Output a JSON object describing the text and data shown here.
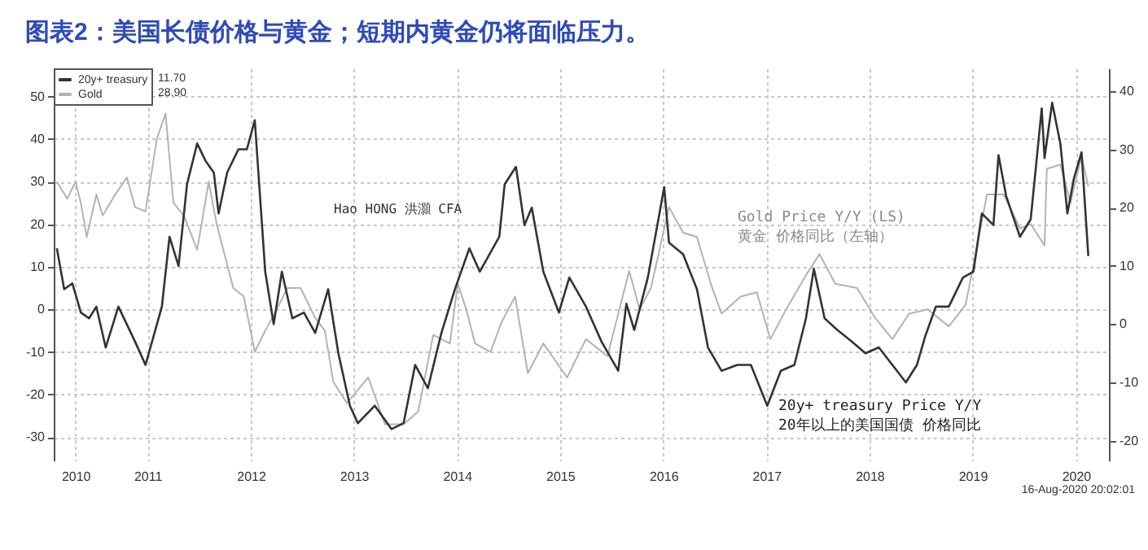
{
  "chart_data": {
    "type": "line",
    "title": "图表2：美国长债价格与黄金；短期内黄金仍将面临压力。",
    "xlim": [
      "2010-08-03",
      "2020-10-26"
    ],
    "xticks": [
      {
        "value": "2010-10-19",
        "label": "2010"
      },
      {
        "value": "2011-07-01",
        "label": "2011"
      },
      {
        "value": "2012-07-01",
        "label": "2012"
      },
      {
        "value": "2013-07-01",
        "label": "2013"
      },
      {
        "value": "2014-07-01",
        "label": "2014"
      },
      {
        "value": "2015-07-01",
        "label": "2015"
      },
      {
        "value": "2016-07-01",
        "label": "2016"
      },
      {
        "value": "2017-07-01",
        "label": "2017"
      },
      {
        "value": "2018-07-01",
        "label": "2018"
      },
      {
        "value": "2019-07-01",
        "label": "2019"
      },
      {
        "value": "2020-07-01",
        "label": "2020"
      }
    ],
    "ylim": [
      -35.5,
      56.6
    ],
    "yticks": [
      -30,
      -20,
      -10,
      0,
      10,
      20,
      30,
      40,
      50
    ],
    "y2lim": [
      -23.4,
      43.9
    ],
    "y2ticks": [
      -20,
      -10,
      0,
      10,
      20,
      30,
      40
    ],
    "grid": true,
    "legend": "top left",
    "series": [
      {
        "name": "20y+ treasury",
        "color": "#333333",
        "axis": "y2",
        "x": [
          "2010-08-14",
          "2010-09-09",
          "2010-10-08",
          "2010-11-07",
          "2010-12-06",
          "2011-01-01",
          "2011-02-03",
          "2011-03-20",
          "2011-05-18",
          "2011-06-24",
          "2011-08-21",
          "2011-09-17",
          "2011-10-19",
          "2011-11-18",
          "2011-12-24",
          "2012-01-23",
          "2012-02-21",
          "2012-03-09",
          "2012-04-08",
          "2012-05-18",
          "2012-06-17",
          "2012-07-15",
          "2012-08-21",
          "2012-09-20",
          "2012-10-19",
          "2012-11-25",
          "2013-01-05",
          "2013-02-14",
          "2013-04-01",
          "2013-05-07",
          "2013-06-17",
          "2013-07-15",
          "2013-09-13",
          "2013-11-11",
          "2013-12-24",
          "2014-02-03",
          "2014-03-20",
          "2014-05-07",
          "2014-06-24",
          "2014-08-14",
          "2014-09-20",
          "2014-11-28",
          "2014-12-17",
          "2015-01-26",
          "2015-02-25",
          "2015-03-23",
          "2015-05-03",
          "2015-06-27",
          "2015-08-03",
          "2015-10-01",
          "2015-11-25",
          "2016-01-23",
          "2016-02-21",
          "2016-03-20",
          "2016-05-07",
          "2016-06-06",
          "2016-07-04",
          "2016-07-21",
          "2016-09-09",
          "2016-10-28",
          "2016-12-06",
          "2017-01-23",
          "2017-03-20",
          "2017-05-07",
          "2017-07-04",
          "2017-08-21",
          "2017-10-08",
          "2017-11-18",
          "2017-12-16",
          "2018-01-23",
          "2018-03-09",
          "2018-04-30",
          "2018-06-17",
          "2018-08-03",
          "2018-09-20",
          "2018-11-07",
          "2018-12-16",
          "2019-01-15",
          "2019-02-21",
          "2019-04-08",
          "2019-05-28",
          "2019-07-04",
          "2019-08-03",
          "2019-09-13",
          "2019-10-01",
          "2019-10-28",
          "2019-12-16",
          "2020-01-23",
          "2020-03-02",
          "2020-03-12",
          "2020-04-08",
          "2020-05-07",
          "2020-06-01",
          "2020-06-24",
          "2020-07-21",
          "2020-08-14"
        ],
        "values": [
          13,
          6,
          7,
          2,
          1,
          3,
          -4,
          3,
          -3,
          -7,
          3,
          15,
          10,
          24,
          31,
          28,
          26,
          19,
          26,
          30,
          30,
          35,
          9,
          0,
          9,
          1,
          2,
          -1.5,
          6,
          -5,
          -14,
          -17,
          -14,
          -18,
          -17,
          -7,
          -11,
          -1.5,
          6,
          13,
          9,
          15,
          24,
          27,
          17,
          20,
          9,
          2,
          8,
          3,
          -3,
          -8,
          3.5,
          -1,
          8,
          16,
          23.5,
          14,
          12,
          6,
          -4,
          -8,
          -7,
          -7,
          -14,
          -8,
          -7,
          1,
          9.5,
          1,
          -1,
          -3,
          -5,
          -4,
          -7,
          -10,
          -7,
          -2,
          3,
          3,
          8,
          9,
          19,
          17,
          29,
          22,
          15,
          18,
          37,
          28.5,
          38,
          31,
          19,
          25,
          29.5,
          11.7
        ]
      },
      {
        "name": "Gold",
        "color": "#b3b3b3",
        "x": [
          "2010-08-14",
          "2010-09-20",
          "2010-10-19",
          "2010-11-07",
          "2010-11-28",
          "2011-01-01",
          "2011-01-23",
          "2011-03-09",
          "2011-04-19",
          "2011-05-18",
          "2011-06-24",
          "2011-08-03",
          "2011-09-03",
          "2011-10-01",
          "2011-11-07",
          "2011-12-24",
          "2012-02-03",
          "2012-03-02",
          "2012-04-30",
          "2012-06-06",
          "2012-07-15",
          "2012-08-21",
          "2012-10-01",
          "2012-11-07",
          "2012-12-24",
          "2013-02-14",
          "2013-03-20",
          "2013-04-19",
          "2013-06-06",
          "2013-08-21",
          "2013-10-19",
          "2013-12-24",
          "2014-02-14",
          "2014-04-08",
          "2014-06-06",
          "2014-07-04",
          "2014-08-03",
          "2014-09-03",
          "2014-10-28",
          "2014-12-06",
          "2015-01-23",
          "2015-03-09",
          "2015-05-03",
          "2015-07-26",
          "2015-10-01",
          "2015-12-16",
          "2016-03-02",
          "2016-04-08",
          "2016-05-18",
          "2016-07-21",
          "2016-09-09",
          "2016-10-28",
          "2016-12-16",
          "2017-01-23",
          "2017-04-01",
          "2017-05-28",
          "2017-07-15",
          "2017-09-09",
          "2017-11-18",
          "2018-01-05",
          "2018-03-02",
          "2018-05-18",
          "2018-07-21",
          "2018-09-20",
          "2018-11-18",
          "2019-01-23",
          "2019-04-08",
          "2019-06-06",
          "2019-07-15",
          "2019-08-21",
          "2019-10-19",
          "2019-12-16",
          "2020-01-23",
          "2020-03-12",
          "2020-03-20",
          "2020-05-07",
          "2020-06-12",
          "2020-07-21",
          "2020-08-14"
        ],
        "values": [
          30,
          26,
          30,
          25,
          17,
          27,
          22,
          27,
          31,
          24,
          23,
          40,
          46,
          25,
          22,
          14,
          30,
          20,
          5,
          3,
          -10,
          -5,
          0,
          5,
          5,
          -2,
          -5,
          -17,
          -22,
          -16,
          -27,
          -27,
          -24,
          -6,
          -8,
          6,
          0,
          -8,
          -10,
          -3,
          3,
          -15,
          -8,
          -16,
          -7,
          -11,
          9,
          0,
          5,
          24,
          18,
          17,
          6,
          -1,
          3,
          4,
          -7,
          0,
          8,
          13,
          6,
          5,
          -2,
          -7,
          -1,
          0,
          -4,
          1,
          14,
          27,
          27,
          19,
          20,
          15,
          33,
          34,
          25,
          36,
          28.9
        ]
      }
    ],
    "annotations": [
      "Gold Price Y/Y (LS)",
      "黄金 价格同比（左轴）",
      "20y+ treasury Price Y/Y",
      "20年以上的美国国债 价格同比",
      "Hao HONG 洪灝 CFA",
      "16-Aug-2020 20:02:01",
      "11.70",
      "28.90"
    ]
  }
}
